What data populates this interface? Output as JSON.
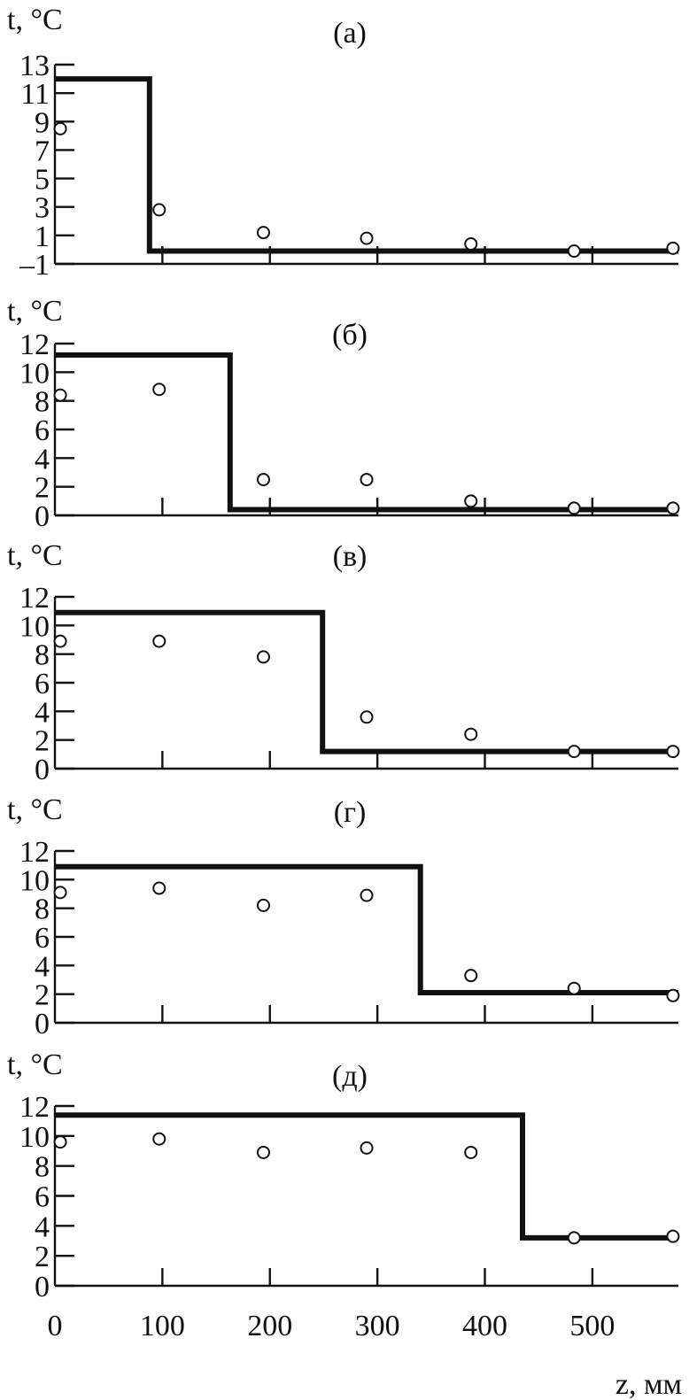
{
  "chart_data": [
    {
      "type": "line",
      "panel_label": "(а)",
      "ylabel": "t, °C",
      "xlim": [
        0,
        580
      ],
      "ylim": [
        -1,
        13
      ],
      "yticks": [
        -1,
        1,
        3,
        5,
        7,
        9,
        11,
        13
      ],
      "ytick_labels": [
        "–1",
        "1",
        "3",
        "5",
        "7",
        "9",
        "11",
        "13"
      ],
      "series": [
        {
          "style": "step-line",
          "x": [
            0,
            88,
            88,
            580
          ],
          "y": [
            12,
            12,
            -0.1,
            -0.1
          ]
        },
        {
          "style": "open-circles",
          "x": [
            5,
            97,
            194,
            290,
            387,
            483,
            575
          ],
          "y": [
            8.5,
            2.8,
            1.2,
            0.8,
            0.4,
            -0.1,
            0.1
          ]
        }
      ]
    },
    {
      "type": "line",
      "panel_label": "(б)",
      "ylabel": "t, °C",
      "xlim": [
        0,
        580
      ],
      "ylim": [
        0,
        12
      ],
      "yticks": [
        0,
        2,
        4,
        6,
        8,
        10,
        12
      ],
      "ytick_labels": [
        "0",
        "2",
        "4",
        "6",
        "8",
        "10",
        "12"
      ],
      "series": [
        {
          "style": "step-line",
          "x": [
            0,
            163,
            163,
            580
          ],
          "y": [
            11.2,
            11.2,
            0.4,
            0.4
          ]
        },
        {
          "style": "open-circles",
          "x": [
            5,
            97,
            194,
            290,
            387,
            483,
            575
          ],
          "y": [
            8.4,
            8.8,
            2.5,
            2.5,
            1.0,
            0.5,
            0.5
          ]
        }
      ]
    },
    {
      "type": "line",
      "panel_label": "(в)",
      "ylabel": "t, °C",
      "xlim": [
        0,
        580
      ],
      "ylim": [
        0,
        12
      ],
      "yticks": [
        0,
        2,
        4,
        6,
        8,
        10,
        12
      ],
      "ytick_labels": [
        "0",
        "2",
        "4",
        "6",
        "8",
        "10",
        "12"
      ],
      "series": [
        {
          "style": "step-line",
          "x": [
            0,
            249,
            249,
            580
          ],
          "y": [
            10.9,
            10.9,
            1.2,
            1.2
          ]
        },
        {
          "style": "open-circles",
          "x": [
            5,
            97,
            194,
            290,
            387,
            483,
            575
          ],
          "y": [
            8.9,
            8.9,
            7.8,
            3.6,
            2.4,
            1.2,
            1.2
          ]
        }
      ]
    },
    {
      "type": "line",
      "panel_label": "(г)",
      "ylabel": "t, °C",
      "xlim": [
        0,
        580
      ],
      "ylim": [
        0,
        12
      ],
      "yticks": [
        0,
        2,
        4,
        6,
        8,
        10,
        12
      ],
      "ytick_labels": [
        "0",
        "2",
        "4",
        "6",
        "8",
        "10",
        "12"
      ],
      "series": [
        {
          "style": "step-line",
          "x": [
            0,
            340,
            340,
            580
          ],
          "y": [
            10.9,
            10.9,
            2.1,
            2.1
          ]
        },
        {
          "style": "open-circles",
          "x": [
            5,
            97,
            194,
            290,
            387,
            483,
            575
          ],
          "y": [
            9.1,
            9.4,
            8.2,
            8.9,
            3.3,
            2.4,
            1.9
          ]
        }
      ]
    },
    {
      "type": "line",
      "panel_label": "(д)",
      "ylabel": "t, °C",
      "xlabel": "z, мм",
      "xlim": [
        0,
        580
      ],
      "ylim": [
        0,
        12
      ],
      "yticks": [
        0,
        2,
        4,
        6,
        8,
        10,
        12
      ],
      "ytick_labels": [
        "0",
        "2",
        "4",
        "6",
        "8",
        "10",
        "12"
      ],
      "xticks": [
        0,
        100,
        200,
        300,
        400,
        500
      ],
      "xtick_labels": [
        "0",
        "100",
        "200",
        "300",
        "400",
        "500"
      ],
      "series": [
        {
          "style": "step-line",
          "x": [
            0,
            435,
            435,
            580
          ],
          "y": [
            11.4,
            11.4,
            3.2,
            3.2
          ]
        },
        {
          "style": "open-circles",
          "x": [
            5,
            97,
            194,
            290,
            387,
            483,
            575
          ],
          "y": [
            9.6,
            9.8,
            8.9,
            9.2,
            8.9,
            3.2,
            3.3
          ]
        }
      ]
    }
  ]
}
